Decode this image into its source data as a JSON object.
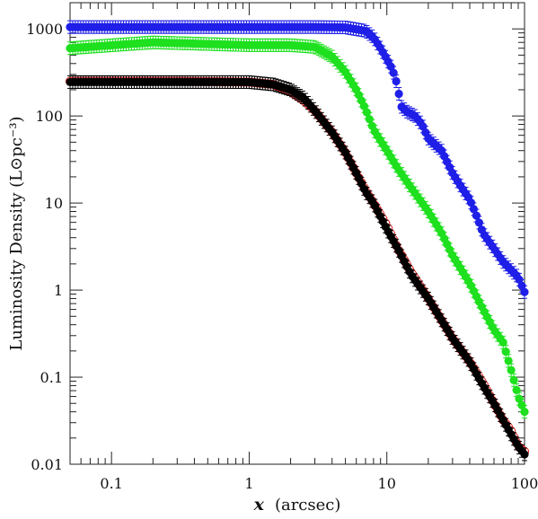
{
  "chart_data": {
    "type": "scatter",
    "title": "",
    "xlabel_symbol": "x",
    "xlabel_unit": "(arcsec)",
    "ylabel": "Luminosity Density (L⊙pc⁻³)",
    "xscale": "log",
    "yscale": "log",
    "xlim": [
      0.05,
      100
    ],
    "ylim": [
      0.01,
      2000
    ],
    "grid": false,
    "xticks": [
      {
        "value": 0.1,
        "label": "0.1"
      },
      {
        "value": 1,
        "label": "1"
      },
      {
        "value": 10,
        "label": "10"
      },
      {
        "value": 100,
        "label": "100"
      }
    ],
    "yticks": [
      {
        "value": 0.01,
        "label": "0.01"
      },
      {
        "value": 0.1,
        "label": "0.1"
      },
      {
        "value": 1,
        "label": "1"
      },
      {
        "value": 10,
        "label": "10"
      },
      {
        "value": 100,
        "label": "100"
      },
      {
        "value": 1000,
        "label": "1000"
      }
    ],
    "series": [
      {
        "color": "#1f1fe8",
        "marker": "filled-circle",
        "errorbars": true,
        "points": [
          [
            0.05,
            1050
          ],
          [
            0.3,
            1050
          ],
          [
            1,
            1050
          ],
          [
            3,
            1050
          ],
          [
            5,
            1040
          ],
          [
            7,
            950
          ],
          [
            8,
            800
          ],
          [
            9,
            600
          ],
          [
            10,
            450
          ],
          [
            11,
            340
          ],
          [
            12,
            220
          ],
          [
            12.6,
            130
          ],
          [
            14,
            112
          ],
          [
            16,
            100
          ],
          [
            18,
            80
          ],
          [
            20,
            55
          ],
          [
            25,
            40
          ],
          [
            30,
            22
          ],
          [
            35,
            15
          ],
          [
            40,
            11
          ],
          [
            45,
            7
          ],
          [
            50,
            4.5
          ],
          [
            60,
            3
          ],
          [
            70,
            2.1
          ],
          [
            80,
            1.7
          ],
          [
            90,
            1.4
          ],
          [
            100,
            0.95
          ]
        ]
      },
      {
        "color": "#1ee01e",
        "marker": "filled-circle",
        "errorbars": true,
        "points": [
          [
            0.05,
            600
          ],
          [
            0.2,
            700
          ],
          [
            1,
            650
          ],
          [
            2,
            650
          ],
          [
            3,
            620
          ],
          [
            4,
            480
          ],
          [
            5,
            320
          ],
          [
            6,
            200
          ],
          [
            7,
            120
          ],
          [
            8,
            70
          ],
          [
            10,
            40
          ],
          [
            12,
            25
          ],
          [
            15,
            15
          ],
          [
            20,
            8
          ],
          [
            25,
            4.5
          ],
          [
            30,
            2.5
          ],
          [
            40,
            1.2
          ],
          [
            50,
            0.6
          ],
          [
            60,
            0.35
          ],
          [
            70,
            0.25
          ],
          [
            80,
            0.12
          ],
          [
            90,
            0.06
          ],
          [
            100,
            0.04
          ]
        ]
      },
      {
        "color": "#e02020",
        "marker": "open-circle",
        "errorbars": false,
        "points": [
          [
            0.05,
            250
          ],
          [
            0.3,
            250
          ],
          [
            1,
            245
          ],
          [
            1.5,
            230
          ],
          [
            2,
            190
          ],
          [
            2.5,
            150
          ],
          [
            3,
            115
          ],
          [
            4,
            65
          ],
          [
            5,
            38
          ],
          [
            6,
            22
          ],
          [
            7,
            14
          ],
          [
            8,
            10
          ],
          [
            10,
            5.5
          ],
          [
            12,
            3
          ],
          [
            15,
            1.6
          ],
          [
            20,
            0.8
          ],
          [
            25,
            0.45
          ],
          [
            30,
            0.28
          ],
          [
            40,
            0.15
          ],
          [
            50,
            0.085
          ],
          [
            60,
            0.05
          ],
          [
            70,
            0.032
          ],
          [
            80,
            0.024
          ],
          [
            90,
            0.016
          ],
          [
            100,
            0.014
          ]
        ]
      },
      {
        "color": "#000000",
        "marker": "filled-circle",
        "errorbars": true,
        "points": [
          [
            0.05,
            245
          ],
          [
            0.3,
            245
          ],
          [
            1,
            245
          ],
          [
            1.5,
            230
          ],
          [
            2,
            200
          ],
          [
            2.5,
            160
          ],
          [
            3,
            115
          ],
          [
            4,
            65
          ],
          [
            5,
            38
          ],
          [
            6,
            22
          ],
          [
            7,
            13.5
          ],
          [
            8,
            10
          ],
          [
            10,
            5
          ],
          [
            12,
            3
          ],
          [
            15,
            1.5
          ],
          [
            20,
            0.8
          ],
          [
            25,
            0.45
          ],
          [
            30,
            0.28
          ],
          [
            40,
            0.15
          ],
          [
            50,
            0.08
          ],
          [
            60,
            0.05
          ],
          [
            70,
            0.032
          ],
          [
            80,
            0.022
          ],
          [
            90,
            0.016
          ],
          [
            100,
            0.013
          ]
        ]
      }
    ]
  }
}
